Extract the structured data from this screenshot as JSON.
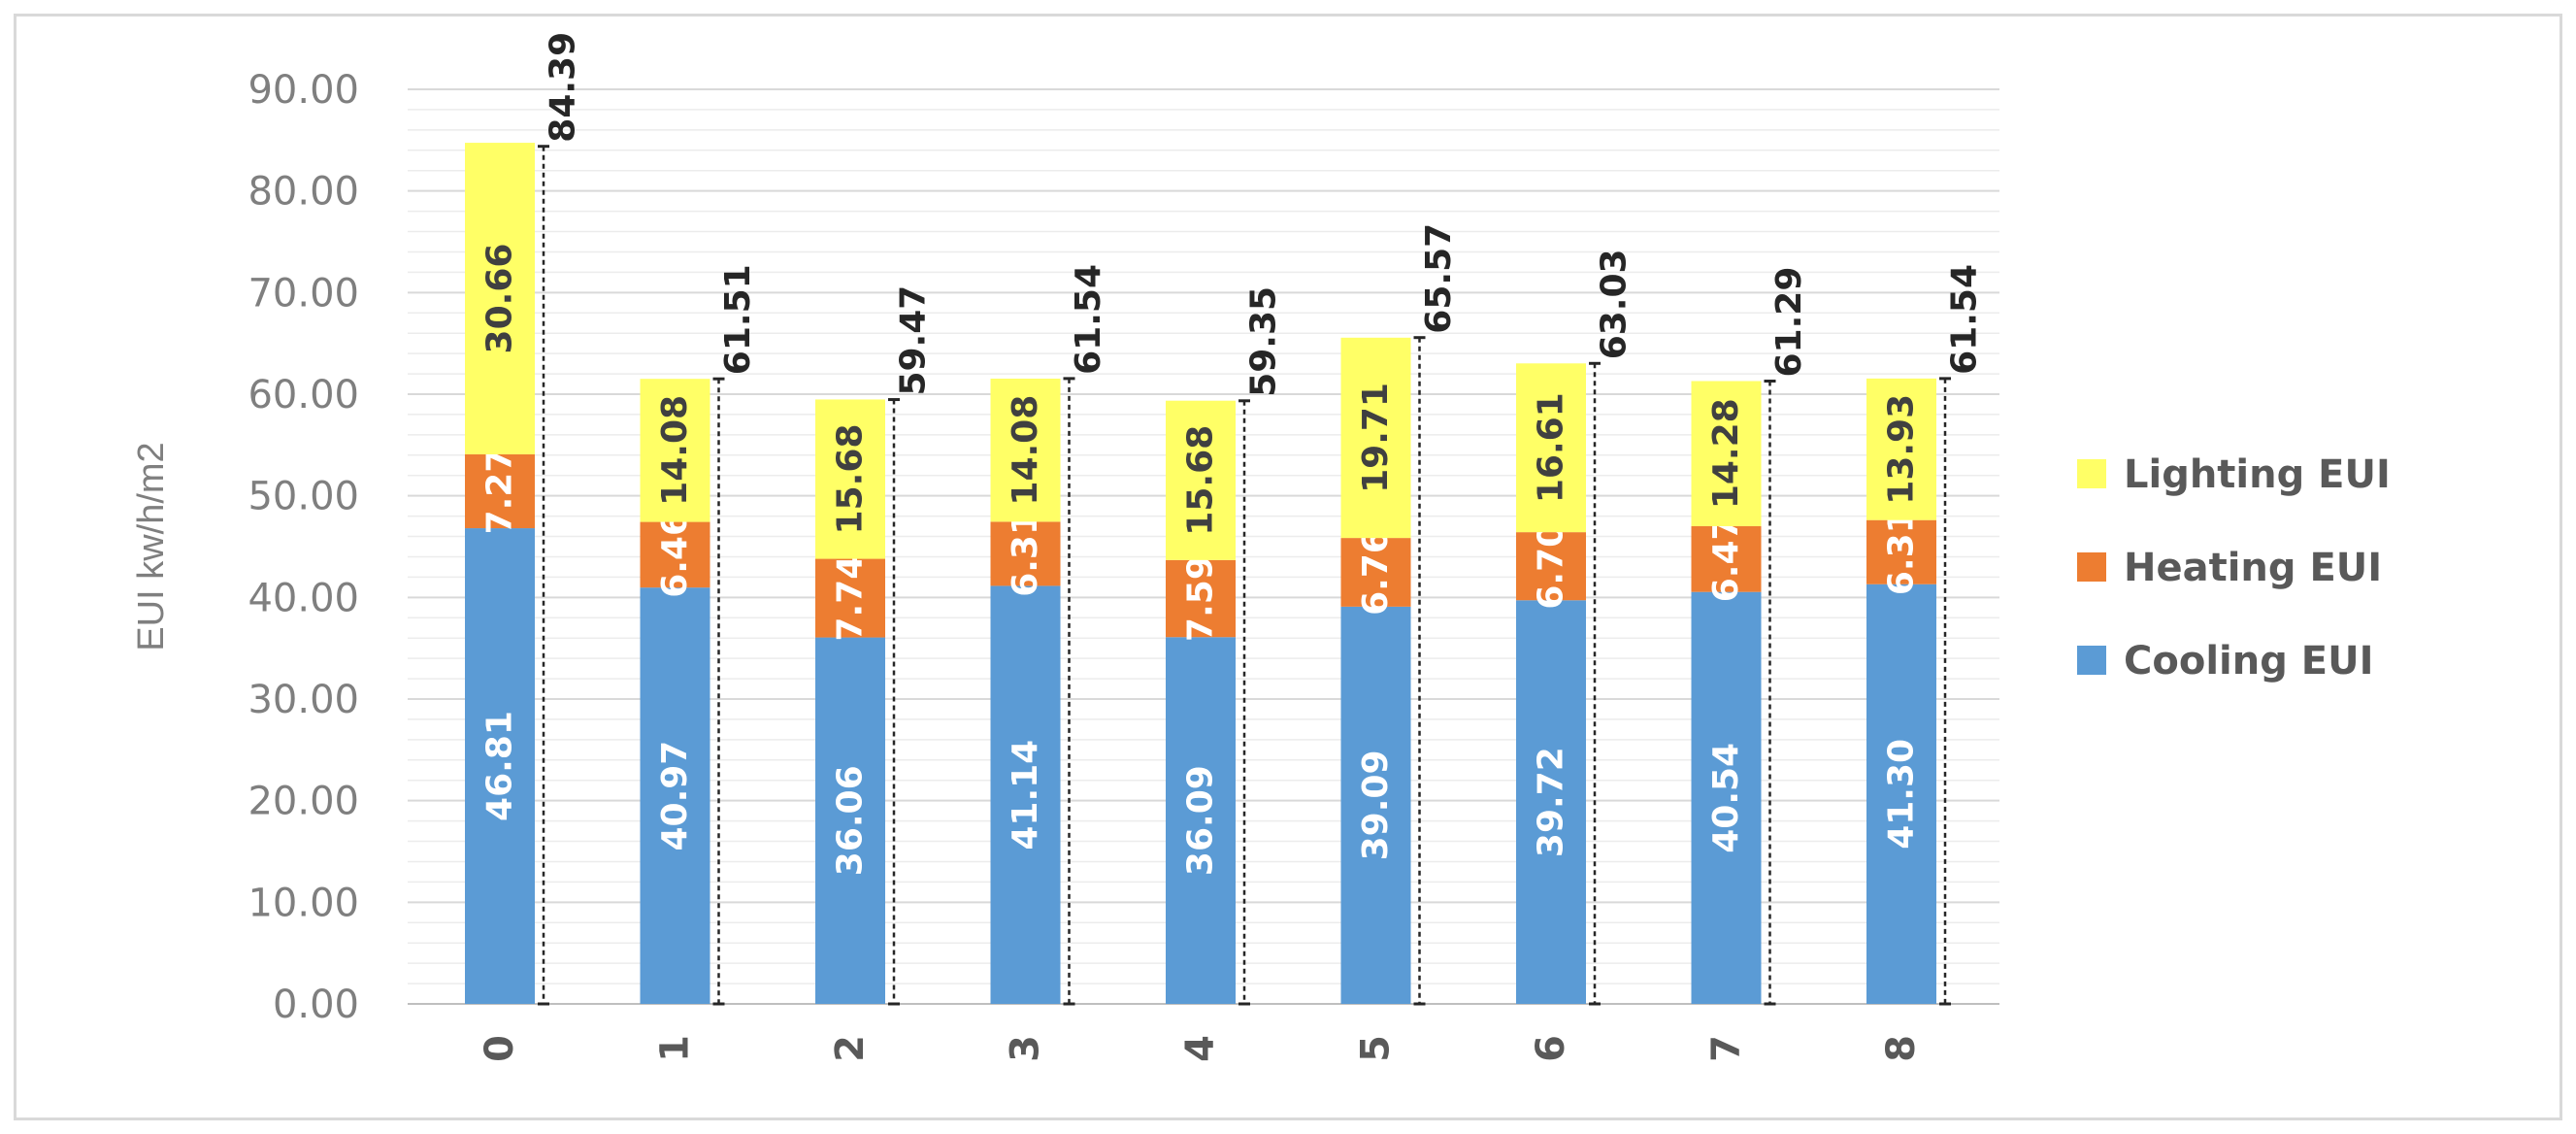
{
  "chart_data": {
    "type": "bar",
    "stacked": true,
    "categories": [
      "0",
      "1",
      "2",
      "3",
      "4",
      "5",
      "6",
      "7",
      "8"
    ],
    "series": [
      {
        "name": "Cooling EUI",
        "color": "#5b9bd5",
        "values": [
          46.81,
          40.97,
          36.06,
          41.14,
          36.09,
          39.09,
          39.72,
          40.54,
          41.3
        ]
      },
      {
        "name": "Heating EUI",
        "color": "#ed7d31",
        "values": [
          7.27,
          6.46,
          7.74,
          6.31,
          7.59,
          6.76,
          6.7,
          6.47,
          6.31
        ]
      },
      {
        "name": "Lighting EUI",
        "color": "#ffff66",
        "values": [
          30.66,
          14.08,
          15.68,
          14.08,
          15.68,
          19.71,
          16.61,
          14.28,
          13.93
        ]
      }
    ],
    "segment_labels": [
      [
        "46.81",
        "7.27",
        "30.66"
      ],
      [
        "40.97",
        "6.46",
        "14.08"
      ],
      [
        "36.06",
        "7.74",
        "15.68"
      ],
      [
        "41.14",
        "6.31",
        "14.08"
      ],
      [
        "36.09",
        "7.59",
        "15.68"
      ],
      [
        "39.09",
        "6.76",
        "19.71"
      ],
      [
        "39.72",
        "6.70",
        "16.61"
      ],
      [
        "40.54",
        "6.47",
        "14.28"
      ],
      [
        "41.30",
        "6.31",
        "13.93"
      ]
    ],
    "totals": [
      "84.39",
      "61.51",
      "59.47",
      "61.54",
      "59.35",
      "65.57",
      "63.03",
      "61.29",
      "61.54"
    ],
    "yticks": [
      "0.00",
      "10.00",
      "20.00",
      "30.00",
      "40.00",
      "50.00",
      "60.00",
      "70.00",
      "80.00",
      "90.00"
    ],
    "ylim": [
      0,
      90
    ],
    "ylabel": "EUI kw/h/m2",
    "xlabel": "",
    "title": "",
    "legend": {
      "position": "right",
      "order": [
        "Lighting EUI",
        "Heating EUI",
        "Cooling EUI"
      ]
    },
    "grid": true,
    "label_colors": {
      "light": "#ffffff",
      "dark": "#404040"
    }
  }
}
